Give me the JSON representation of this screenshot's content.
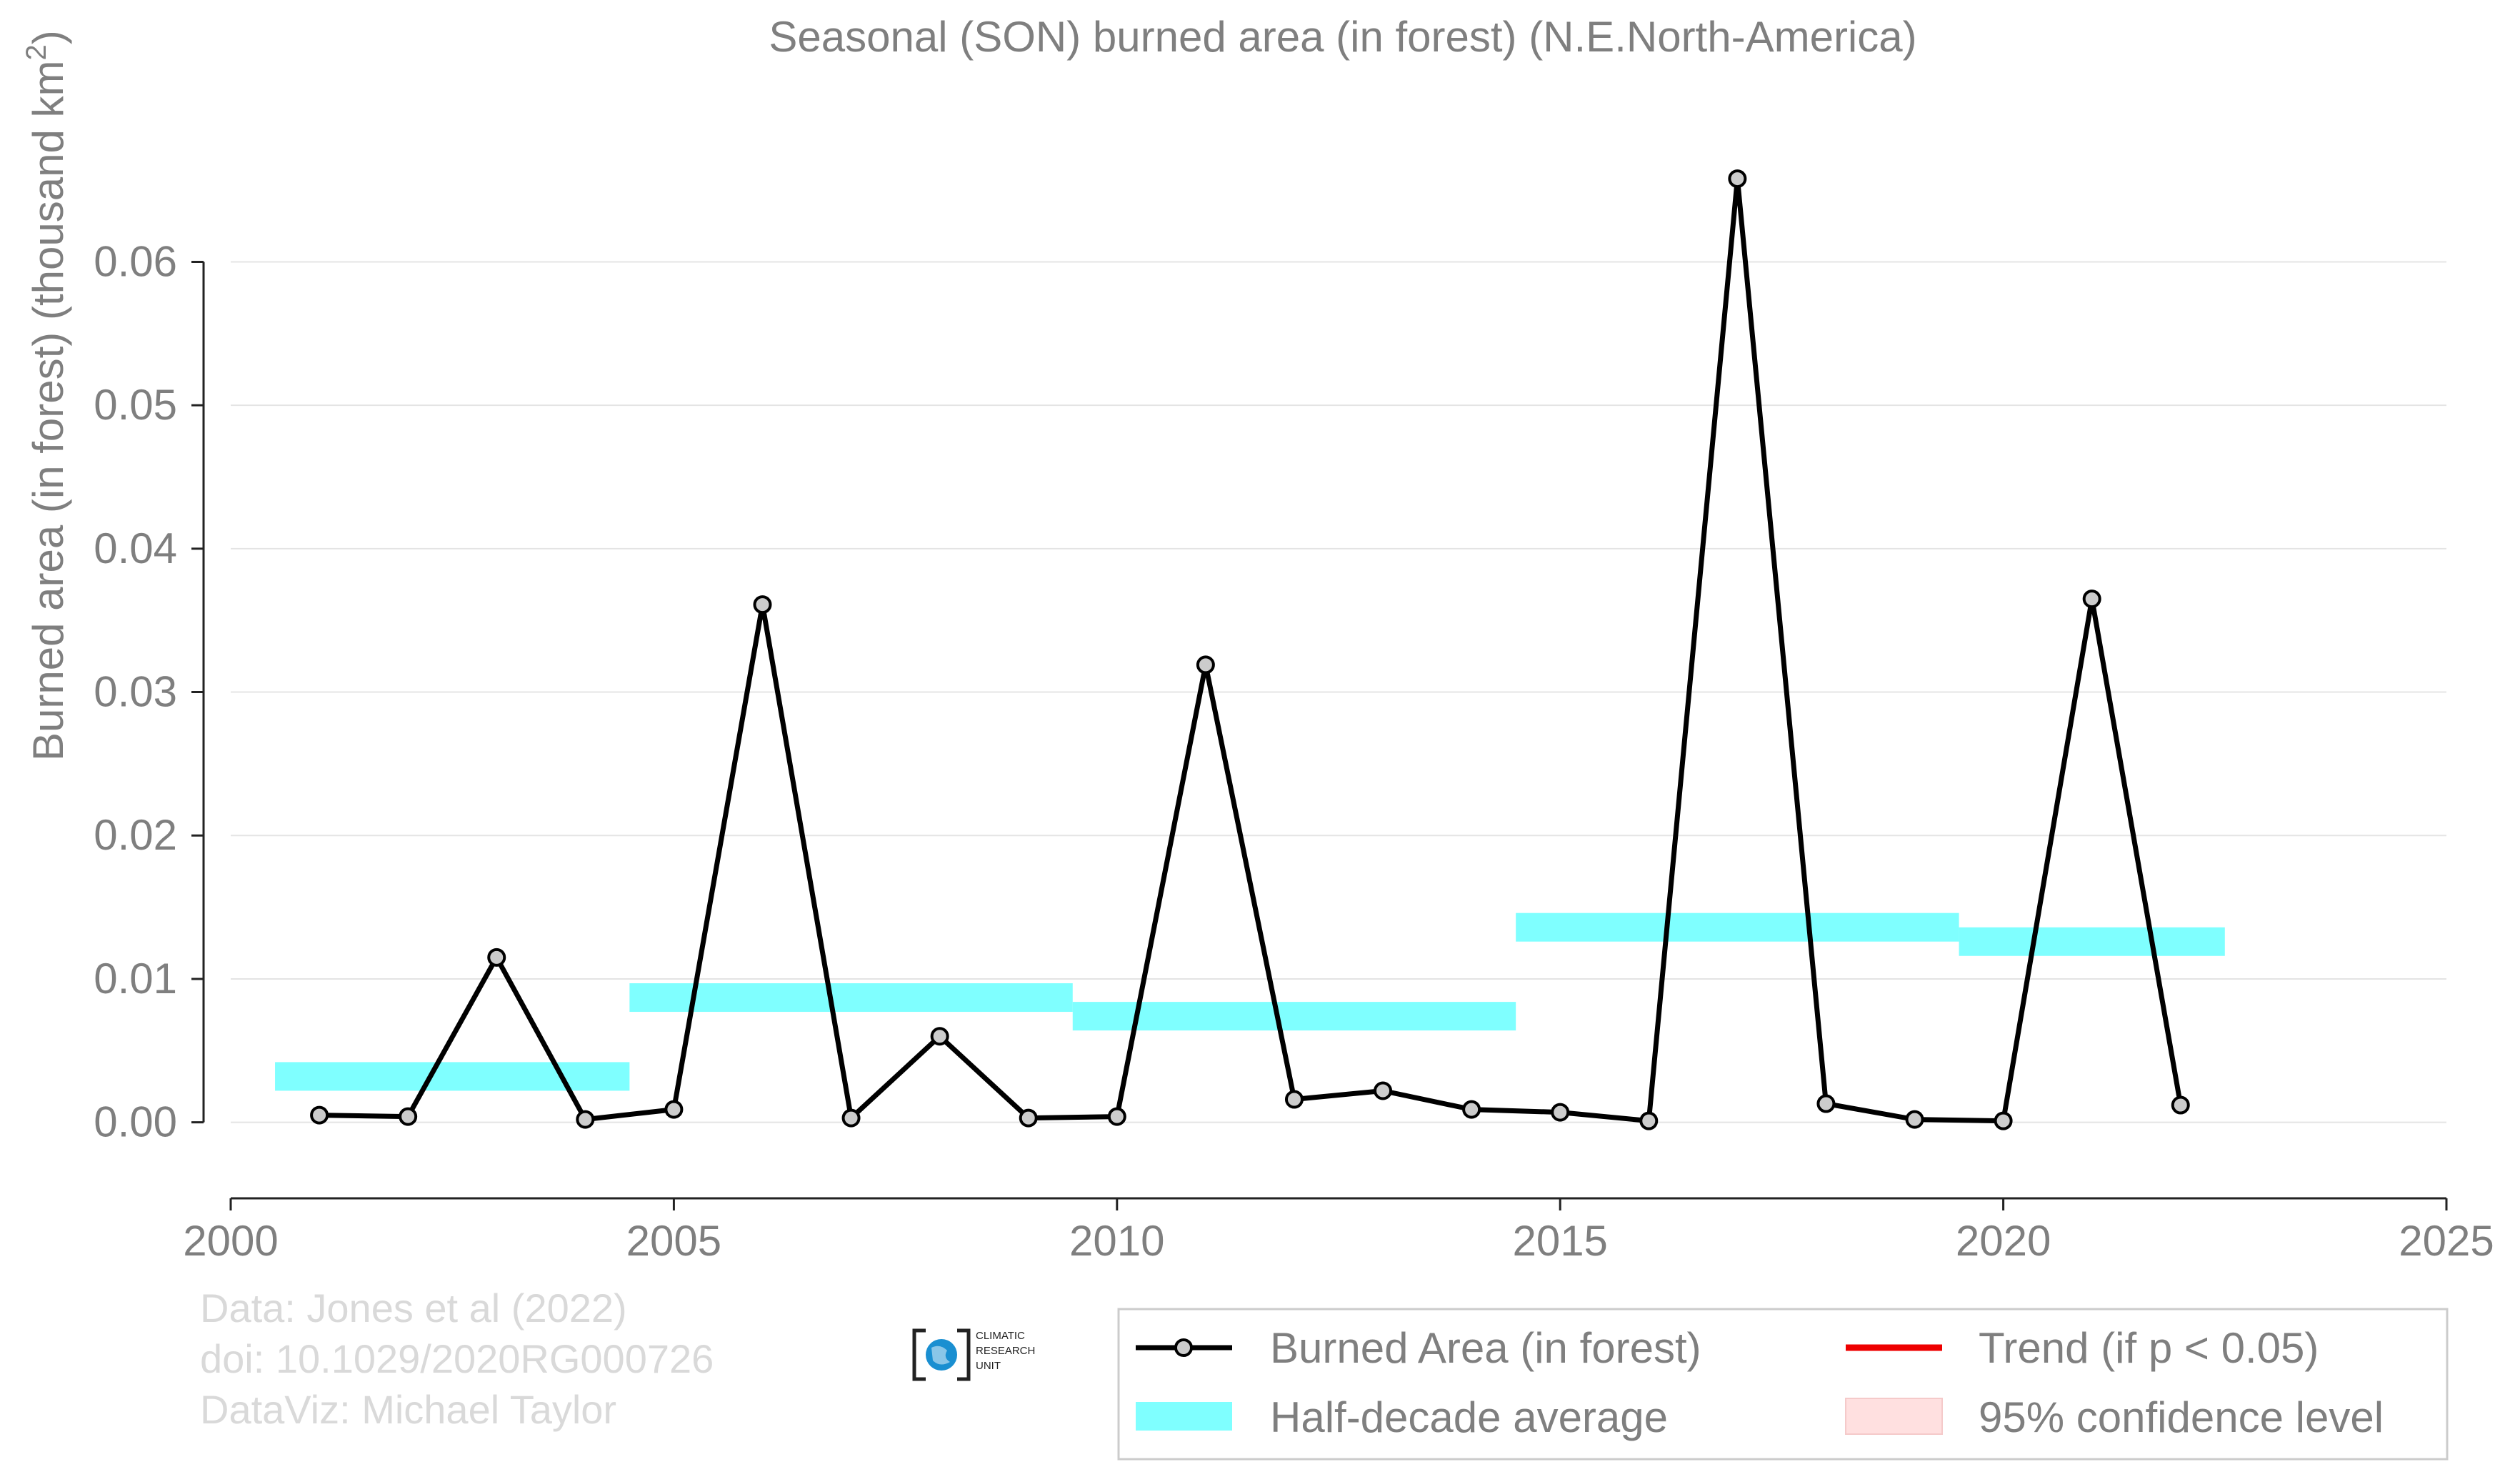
{
  "chart_data": {
    "type": "line",
    "title": "Seasonal (SON) burned area (in forest) (N.E.North-America)",
    "ylabel_main": "Burned area (in forest) (thousand km",
    "ylabel_sup": "2",
    "ylabel_close": ")",
    "xlabel": "",
    "xlim": [
      2000,
      2025
    ],
    "ylim": [
      -0.0053,
      0.0668
    ],
    "x_ticks": [
      2000,
      2005,
      2010,
      2015,
      2020,
      2025
    ],
    "x_tick_labels": [
      "2000",
      "2005",
      "2010",
      "2015",
      "2020",
      "2025"
    ],
    "y_ticks": [
      0.0,
      0.01,
      0.02,
      0.03,
      0.04,
      0.05,
      0.06
    ],
    "y_tick_labels": [
      "0.00",
      "0.01",
      "0.02",
      "0.03",
      "0.04",
      "0.05",
      "0.06"
    ],
    "grid": "horizontal",
    "series": [
      {
        "name": "Burned Area (in forest)",
        "color": "#000000",
        "marker_fill": "#cccccc",
        "x": [
          2001,
          2002,
          2003,
          2004,
          2005,
          2006,
          2007,
          2008,
          2009,
          2010,
          2011,
          2012,
          2013,
          2014,
          2015,
          2016,
          2017,
          2018,
          2019,
          2020,
          2021,
          2022
        ],
        "y": [
          0.0005,
          0.0004,
          0.0115,
          0.0002,
          0.0009,
          0.0361,
          0.0003,
          0.006,
          0.0003,
          0.0004,
          0.0319,
          0.0016,
          0.0022,
          0.0009,
          0.0007,
          0.0001,
          0.0658,
          0.0013,
          0.0002,
          0.0001,
          0.0365,
          0.0012
        ]
      }
    ],
    "half_decade_average": {
      "name": "Half-decade average",
      "color": "#7fffff",
      "segments": [
        {
          "x0": 2000.5,
          "x1": 2004.5,
          "y": 0.0032
        },
        {
          "x0": 2004.5,
          "x1": 2009.5,
          "y": 0.0087
        },
        {
          "x0": 2009.5,
          "x1": 2014.5,
          "y": 0.0074
        },
        {
          "x0": 2014.5,
          "x1": 2019.5,
          "y": 0.0136
        },
        {
          "x0": 2019.5,
          "x1": 2022.5,
          "y": 0.0126
        }
      ]
    },
    "legend": {
      "placement": "bottom-right",
      "items": [
        {
          "label": "Burned Area (in forest)",
          "kind": "line-marker",
          "color": "#000000"
        },
        {
          "label": "Trend (if p < 0.05)",
          "kind": "line",
          "color": "#ee0000"
        },
        {
          "label": "Half-decade average",
          "kind": "band",
          "color": "#7fffff"
        },
        {
          "label": "95% confidence level",
          "kind": "band",
          "color": "#ffe0e0"
        }
      ]
    },
    "credits": [
      "Data: Jones et al (2022)",
      "doi: 10.1029/2020RG000726",
      "DataViz: Michael Taylor"
    ],
    "logo_text": [
      "CLIMATIC",
      "RESEARCH",
      "UNIT"
    ]
  }
}
